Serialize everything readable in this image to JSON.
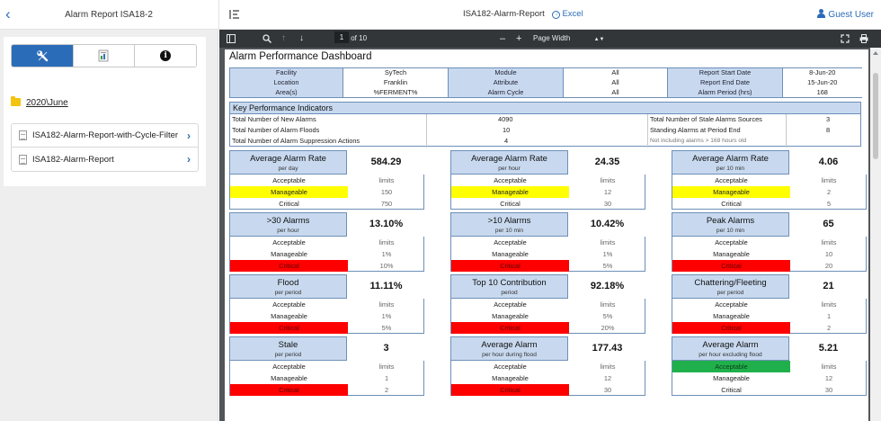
{
  "app": {
    "report_title": "Alarm Report ISA18-2",
    "doc_title": "ISA182-Alarm-Report",
    "excel_label": "Excel",
    "user_label": "Guest User"
  },
  "sidebar": {
    "folder": "2020\\June",
    "reports": [
      "ISA182-Alarm-Report-with-Cycle-Filter",
      "ISA182-Alarm-Report"
    ]
  },
  "toolbar": {
    "page_current": "1",
    "page_total": "of 10",
    "zoom_option": "Page Width"
  },
  "dashboard": {
    "title": "Alarm Performance Dashboard",
    "info": [
      [
        "Facility",
        "SyTech",
        "Module",
        "All",
        "Report Start Date",
        "8-Jun-20"
      ],
      [
        "Location",
        "Franklin",
        "Attribute",
        "All",
        "Report End Date",
        "15-Jun-20"
      ],
      [
        "Area(s)",
        "%FERMENT%",
        "Alarm Cycle",
        "All",
        "Alarm Period (hrs)",
        "168"
      ]
    ],
    "kpi_header": "Key Performance Indicators",
    "kpis_left": [
      [
        "Total Number of New Alarms",
        "4090"
      ],
      [
        "Total Number of Alarm Floods",
        "10"
      ],
      [
        "Total Number of Alarm Suppression Actions",
        "4"
      ]
    ],
    "kpis_right": [
      [
        "Total Number of Stale Alarms Sources",
        "3"
      ],
      [
        "Standing Alarms at Period End",
        "8"
      ]
    ],
    "kpi_note": "Not including alarms > 168 hours old",
    "limits_label": "limits",
    "metrics": [
      {
        "title": "Average Alarm Rate",
        "unit": "per day",
        "value": "584.29",
        "rows": [
          [
            "Acceptable",
            ""
          ],
          [
            "Manageable",
            "150"
          ],
          [
            "Critical",
            "750"
          ]
        ],
        "highlight": 1,
        "color": "yellow"
      },
      {
        "title": "Average Alarm Rate",
        "unit": "per hour",
        "value": "24.35",
        "rows": [
          [
            "Acceptable",
            ""
          ],
          [
            "Manageable",
            "12"
          ],
          [
            "Critical",
            "30"
          ]
        ],
        "highlight": 1,
        "color": "yellow"
      },
      {
        "title": "Average Alarm Rate",
        "unit": "per 10 min",
        "value": "4.06",
        "rows": [
          [
            "Acceptable",
            ""
          ],
          [
            "Manageable",
            "2"
          ],
          [
            "Critical",
            "5"
          ]
        ],
        "highlight": 1,
        "color": "yellow"
      },
      {
        "title": ">30 Alarms",
        "unit": "per hour",
        "value": "13.10%",
        "rows": [
          [
            "Acceptable",
            ""
          ],
          [
            "Manageable",
            "1%"
          ],
          [
            "Critical",
            "10%"
          ]
        ],
        "highlight": 2,
        "color": "red"
      },
      {
        "title": ">10 Alarms",
        "unit": "per 10 min",
        "value": "10.42%",
        "rows": [
          [
            "Acceptable",
            ""
          ],
          [
            "Manageable",
            "1%"
          ],
          [
            "Critical",
            "5%"
          ]
        ],
        "highlight": 2,
        "color": "red"
      },
      {
        "title": "Peak Alarms",
        "unit": "per 10 min",
        "value": "65",
        "rows": [
          [
            "Acceptable",
            ""
          ],
          [
            "Manageable",
            "10"
          ],
          [
            "Critical",
            "20"
          ]
        ],
        "highlight": 2,
        "color": "red"
      },
      {
        "title": "Flood",
        "unit": "per period",
        "value": "11.11%",
        "rows": [
          [
            "Acceptable",
            ""
          ],
          [
            "Manageable",
            "1%"
          ],
          [
            "Critical",
            "5%"
          ]
        ],
        "highlight": 2,
        "color": "red"
      },
      {
        "title": "Top 10 Contribution",
        "unit": "period",
        "value": "92.18%",
        "rows": [
          [
            "Acceptable",
            ""
          ],
          [
            "Manageable",
            "5%"
          ],
          [
            "Critical",
            "20%"
          ]
        ],
        "highlight": 2,
        "color": "red"
      },
      {
        "title": "Chattering/Fleeting",
        "unit": "per period",
        "value": "21",
        "rows": [
          [
            "Acceptable",
            ""
          ],
          [
            "Manageable",
            "1"
          ],
          [
            "Critical",
            "2"
          ]
        ],
        "highlight": 2,
        "color": "red"
      },
      {
        "title": "Stale",
        "unit": "per period",
        "value": "3",
        "rows": [
          [
            "Acceptable",
            ""
          ],
          [
            "Manageable",
            "1"
          ],
          [
            "Critical",
            "2"
          ]
        ],
        "highlight": 2,
        "color": "red"
      },
      {
        "title": "Average Alarm",
        "unit": "per hour during flood",
        "value": "177.43",
        "rows": [
          [
            "Acceptable",
            ""
          ],
          [
            "Manageable",
            "12"
          ],
          [
            "Critical",
            "30"
          ]
        ],
        "highlight": 2,
        "color": "red"
      },
      {
        "title": "Average Alarm",
        "unit": "per hour excluding flood",
        "value": "5.21",
        "rows": [
          [
            "Acceptable",
            ""
          ],
          [
            "Manageable",
            "12"
          ],
          [
            "Critical",
            "30"
          ]
        ],
        "highlight": 0,
        "color": "green"
      }
    ]
  }
}
